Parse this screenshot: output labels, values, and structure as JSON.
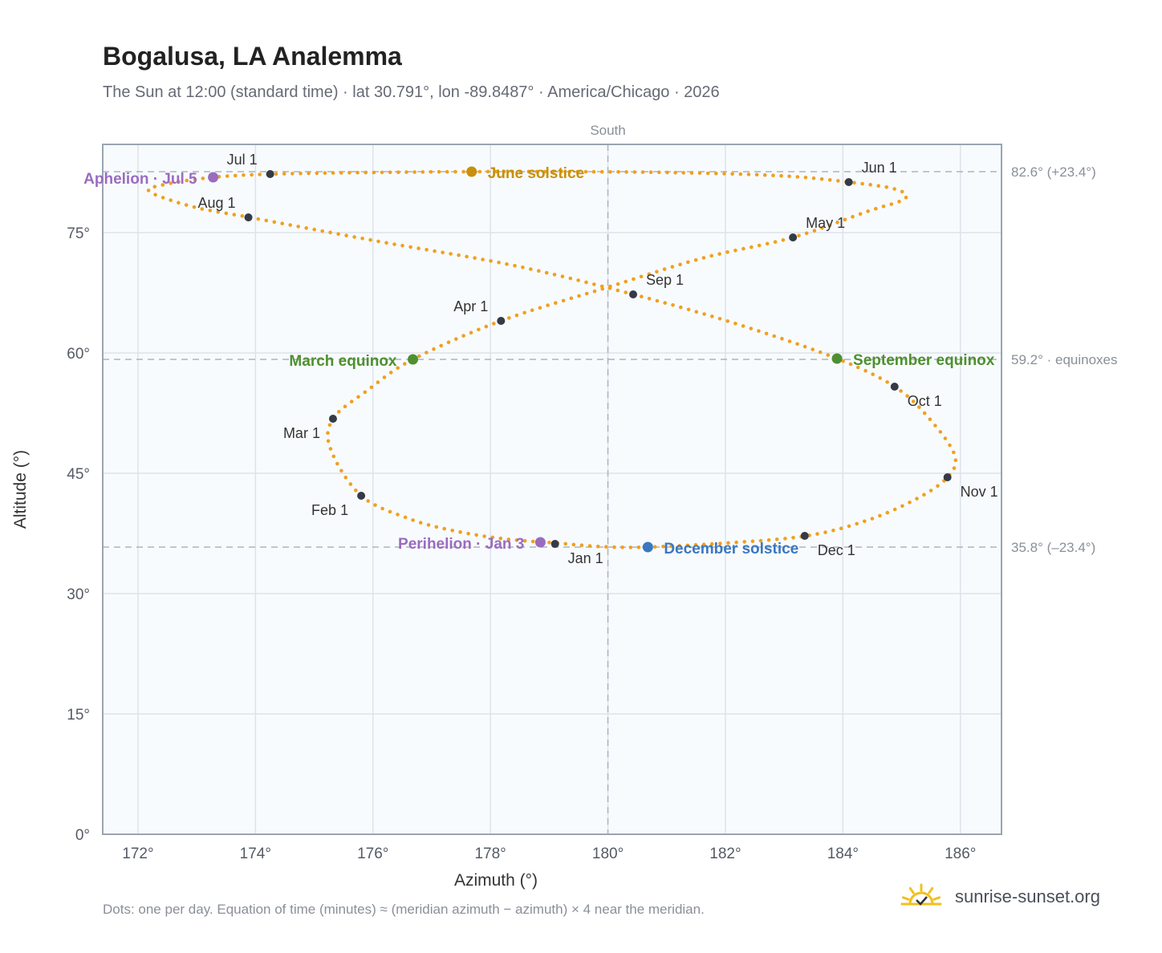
{
  "header": {
    "title": "Bogalusa, LA Analemma",
    "subtitle": "The Sun at 12:00 (standard time) · lat 30.791°, lon -89.8487° · America/Chicago · 2026"
  },
  "footer": {
    "note": "Dots: one per day. Equation of time (minutes) ≈ (meridian azimuth − azimuth) × 4 near the meridian.",
    "brand": "sunrise-sunset.org"
  },
  "colors": {
    "path": "#f0a020",
    "month_dot": "#343a46",
    "june": "#c8900a",
    "december": "#3a78c0",
    "equinox": "#4e9030",
    "apsis": "#9a6cc0",
    "grid": "#dde3ea",
    "refline": "#aab4bf",
    "plot_bg": "#f8fbfd",
    "axis_frame": "#9aa5b1",
    "ref_label": "#8a8f99",
    "brand_sun": "#f0c020"
  },
  "chart_data": {
    "type": "scatter",
    "xlabel": "Azimuth (°)",
    "ylabel": "Altitude (°)",
    "xlim": [
      171.4,
      186.7
    ],
    "ylim": [
      0,
      86
    ],
    "xticks": [
      172,
      174,
      176,
      178,
      180,
      182,
      184,
      186
    ],
    "yticks": [
      0,
      15,
      30,
      45,
      60,
      75
    ],
    "xtick_labels": [
      "172°",
      "174°",
      "176°",
      "178°",
      "180°",
      "182°",
      "184°",
      "186°"
    ],
    "ytick_labels": [
      "0°",
      "15°",
      "30°",
      "45°",
      "60°",
      "75°"
    ],
    "grid": true,
    "meridian": {
      "x": 180,
      "label": "South"
    },
    "reference_lines": [
      {
        "y": 82.6,
        "label": "82.6° (+23.4°)"
      },
      {
        "y": 59.2,
        "label": "59.2° · equinoxes"
      },
      {
        "y": 35.8,
        "label": "35.8° (–23.4°)"
      }
    ],
    "daily_path": [
      [
        179.14,
        36.3
      ],
      [
        178.26,
        36.8
      ],
      [
        177.4,
        37.8
      ],
      [
        176.63,
        39.3
      ],
      [
        175.8,
        42.2
      ],
      [
        175.28,
        48.0
      ],
      [
        175.32,
        51.8
      ],
      [
        175.9,
        55.3
      ],
      [
        176.68,
        59.2
      ],
      [
        178.18,
        64.0
      ],
      [
        180.0,
        68.2
      ],
      [
        181.6,
        71.8
      ],
      [
        183.15,
        74.4
      ],
      [
        184.4,
        77.6
      ],
      [
        185.05,
        79.2
      ],
      [
        184.9,
        80.4
      ],
      [
        184.1,
        81.3
      ],
      [
        182.9,
        82.1
      ],
      [
        181.0,
        82.5
      ],
      [
        179.1,
        82.6
      ],
      [
        177.7,
        82.6
      ],
      [
        176.0,
        82.5
      ],
      [
        174.3,
        82.3
      ],
      [
        173.28,
        81.9
      ],
      [
        172.45,
        81.0
      ],
      [
        172.2,
        80.1
      ],
      [
        172.95,
        78.2
      ],
      [
        173.9,
        76.9
      ],
      [
        176.1,
        73.9
      ],
      [
        178.4,
        70.9
      ],
      [
        180.43,
        67.3
      ],
      [
        182.2,
        63.6
      ],
      [
        183.9,
        59.3
      ],
      [
        184.88,
        55.8
      ],
      [
        185.45,
        52.0
      ],
      [
        185.9,
        47.3
      ],
      [
        185.78,
        44.5
      ],
      [
        185.25,
        41.8
      ],
      [
        184.4,
        39.1
      ],
      [
        183.38,
        37.2
      ],
      [
        182.0,
        36.3
      ],
      [
        180.68,
        35.8
      ],
      [
        179.9,
        35.85
      ],
      [
        179.14,
        36.3
      ]
    ],
    "month_markers": [
      {
        "label": "Jan 1",
        "x": 179.1,
        "y": 36.2
      },
      {
        "label": "Feb 1",
        "x": 175.8,
        "y": 42.2
      },
      {
        "label": "Mar 1",
        "x": 175.32,
        "y": 51.8
      },
      {
        "label": "Apr 1",
        "x": 178.18,
        "y": 64.0
      },
      {
        "label": "May 1",
        "x": 183.15,
        "y": 74.4
      },
      {
        "label": "Jun 1",
        "x": 184.1,
        "y": 81.3
      },
      {
        "label": "Jul 1",
        "x": 174.25,
        "y": 82.3
      },
      {
        "label": "Aug 1",
        "x": 173.88,
        "y": 76.9
      },
      {
        "label": "Sep 1",
        "x": 180.43,
        "y": 67.3
      },
      {
        "label": "Oct 1",
        "x": 184.88,
        "y": 55.8
      },
      {
        "label": "Nov 1",
        "x": 185.78,
        "y": 44.5
      },
      {
        "label": "Dec 1",
        "x": 183.35,
        "y": 37.2
      }
    ],
    "events": [
      {
        "label": "June solstice",
        "x": 177.68,
        "y": 82.6,
        "color_key": "june"
      },
      {
        "label": "December solstice",
        "x": 180.68,
        "y": 35.8,
        "color_key": "december"
      },
      {
        "label": "March equinox",
        "x": 176.68,
        "y": 59.2,
        "color_key": "equinox"
      },
      {
        "label": "September equinox",
        "x": 183.9,
        "y": 59.3,
        "color_key": "equinox"
      },
      {
        "label": "Aphelion · Jul 5",
        "x": 173.28,
        "y": 81.9,
        "color_key": "apsis"
      },
      {
        "label": "Perihelion · Jan 3",
        "x": 178.85,
        "y": 36.4,
        "color_key": "apsis"
      }
    ]
  }
}
